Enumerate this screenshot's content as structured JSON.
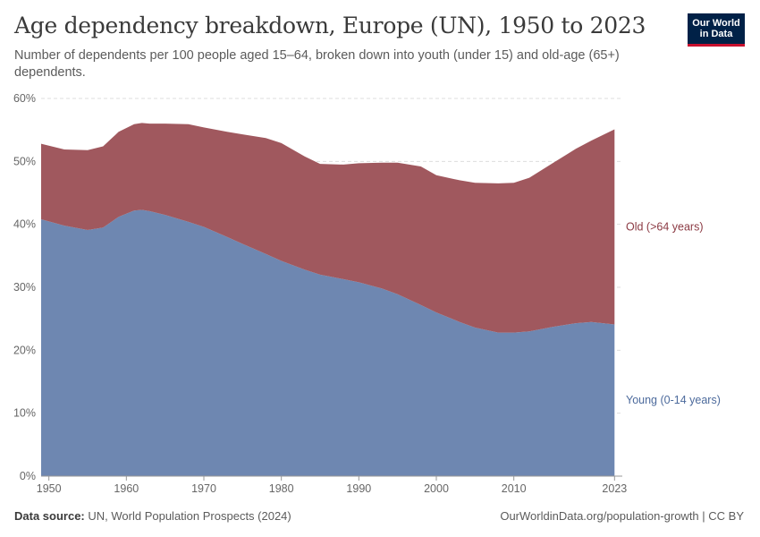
{
  "header": {
    "title": "Age dependency breakdown, Europe (UN), 1950 to 2023",
    "subtitle": "Number of dependents per 100 people aged 15–64, broken down into youth (under 15) and old-age (65+) dependents.",
    "logo_text": "Our World in Data"
  },
  "footer": {
    "source_label": "Data source:",
    "source_text": "UN, World Population Prospects (2024)",
    "link_text": "OurWorldinData.org/population-growth | CC BY"
  },
  "colors": {
    "young": "#6e87b1",
    "old": "#a0585e",
    "young_label": "#4c6a9c",
    "old_label": "#8b3a43",
    "grid": "#dddddd",
    "axis_text": "#666666"
  },
  "chart_data": {
    "type": "area",
    "stacked": true,
    "title": "Age dependency breakdown, Europe (UN), 1950 to 2023",
    "xlabel": "",
    "ylabel": "",
    "xlim": [
      1949,
      2024
    ],
    "ylim": [
      0,
      60
    ],
    "grid": "horizontal dashed",
    "x_ticks": [
      1950,
      1960,
      1970,
      1980,
      1990,
      2000,
      2010,
      2023
    ],
    "y_ticks": [
      0,
      10,
      20,
      30,
      40,
      50,
      60
    ],
    "y_tick_labels": [
      "0%",
      "10%",
      "20%",
      "30%",
      "40%",
      "50%",
      "60%"
    ],
    "x": [
      1949,
      1952,
      1955,
      1957,
      1959,
      1961,
      1962,
      1963,
      1965,
      1968,
      1970,
      1973,
      1975,
      1978,
      1980,
      1983,
      1985,
      1988,
      1990,
      1993,
      1995,
      1998,
      2000,
      2003,
      2005,
      2008,
      2010,
      2012,
      2015,
      2018,
      2020,
      2023
    ],
    "series": [
      {
        "name": "Young (0-14 years)",
        "values": [
          40.8,
          39.8,
          39.1,
          39.5,
          41.2,
          42.2,
          42.3,
          42.1,
          41.5,
          40.4,
          39.6,
          38.0,
          36.9,
          35.3,
          34.2,
          32.8,
          32.0,
          31.3,
          30.8,
          29.8,
          28.9,
          27.2,
          26.0,
          24.5,
          23.6,
          22.8,
          22.8,
          23.0,
          23.7,
          24.3,
          24.5,
          24.1
        ]
      },
      {
        "name": "Old (>64 years)",
        "values": [
          12.0,
          12.1,
          12.7,
          12.9,
          13.5,
          13.7,
          13.8,
          13.9,
          14.5,
          15.5,
          15.8,
          16.7,
          17.4,
          18.4,
          18.7,
          18.0,
          17.6,
          18.2,
          18.9,
          20.0,
          20.9,
          22.0,
          21.8,
          22.5,
          23.0,
          23.7,
          23.8,
          24.4,
          26.0,
          27.7,
          28.8,
          31.0
        ]
      }
    ],
    "series_labels": [
      "Old (>64 years)",
      "Young (0-14 years)"
    ]
  }
}
